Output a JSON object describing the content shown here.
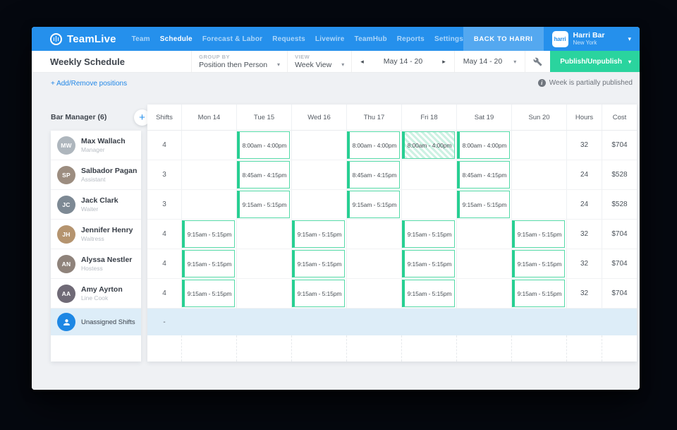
{
  "colors": {
    "nav_blue": "#2590ec",
    "publish_green": "#2ad49e",
    "chip_border": "#55d9a7",
    "chip_edge": "#27cf92",
    "unassigned_bg": "#ddedf8",
    "link_blue": "#2287e6"
  },
  "icons": {
    "chevron_down": "▾",
    "prev_arrow": "◂",
    "next_arrow": "▸",
    "plus": "+",
    "info": "i"
  },
  "nav": {
    "brand": "TeamLive",
    "items": [
      {
        "label": "Team",
        "active": false
      },
      {
        "label": "Schedule",
        "active": true
      },
      {
        "label": "Forecast & Labor",
        "active": false
      },
      {
        "label": "Requests",
        "active": false
      },
      {
        "label": "Livewire",
        "active": false
      },
      {
        "label": "TeamHub",
        "active": false
      },
      {
        "label": "Reports",
        "active": false
      },
      {
        "label": "Settings",
        "active": false
      }
    ],
    "back_label": "BACK TO HARRI",
    "account": {
      "logo_text": "harri",
      "name": "Harri Bar",
      "location": "New York"
    }
  },
  "toolbar": {
    "title": "Weekly Schedule",
    "group_by": {
      "label": "GROUP BY",
      "value": "Position then Person"
    },
    "view": {
      "label": "VIEW",
      "value": "Week View"
    },
    "week_nav": {
      "value": "May 14 - 20"
    },
    "week_select": {
      "value": "May 14 - 20"
    },
    "publish_label": "Publish/Unpublish"
  },
  "subheader": {
    "add_remove_label": "+ Add/Remove positions",
    "status": "Week is partially published"
  },
  "sidebar": {
    "group_label": "Bar Manager (6)",
    "employees": [
      {
        "name": "Max Wallach",
        "role": "Manager",
        "initials": "MW",
        "avatar_color": "#aeb6bd"
      },
      {
        "name": "Salbador Pagan",
        "role": "Assistant",
        "initials": "SP",
        "avatar_color": "#9c8d80"
      },
      {
        "name": "Jack Clark",
        "role": "Waiter",
        "initials": "JC",
        "avatar_color": "#7d8994"
      },
      {
        "name": "Jennifer Henry",
        "role": "Waitress",
        "initials": "JH",
        "avatar_color": "#b5946f"
      },
      {
        "name": "Alyssa Nestler",
        "role": "Hostess",
        "initials": "AN",
        "avatar_color": "#8f837b"
      },
      {
        "name": "Amy Ayrton",
        "role": "Line Cook",
        "initials": "AA",
        "avatar_color": "#6f6a76"
      }
    ],
    "unassigned_label": "Unassigned Shifts"
  },
  "grid": {
    "columns": [
      "Shifts",
      "Mon 14",
      "Tue 15",
      "Wed 16",
      "Thu 17",
      "Fri 18",
      "Sat 19",
      "Sun 20",
      "Hours",
      "Cost"
    ],
    "rows": [
      {
        "shifts": "4",
        "days": [
          null,
          {
            "time": "8:00am - 4:00pm"
          },
          null,
          {
            "time": "8:00am - 4:00pm"
          },
          {
            "time": "8:00am - 4:00pm",
            "hatched": true
          },
          {
            "time": "8:00am - 4:00pm"
          },
          null
        ],
        "hours": "32",
        "cost": "$704"
      },
      {
        "shifts": "3",
        "days": [
          null,
          {
            "time": "8:45am - 4:15pm"
          },
          null,
          {
            "time": "8:45am - 4:15pm"
          },
          null,
          {
            "time": "8:45am - 4:15pm"
          },
          null
        ],
        "hours": "24",
        "cost": "$528"
      },
      {
        "shifts": "3",
        "days": [
          null,
          {
            "time": "9:15am - 5:15pm"
          },
          null,
          {
            "time": "9:15am - 5:15pm"
          },
          null,
          {
            "time": "9:15am - 5:15pm"
          },
          null
        ],
        "hours": "24",
        "cost": "$528"
      },
      {
        "shifts": "4",
        "days": [
          {
            "time": "9:15am - 5:15pm"
          },
          null,
          {
            "time": "9:15am - 5:15pm"
          },
          null,
          {
            "time": "9:15am - 5:15pm"
          },
          null,
          {
            "time": "9:15am - 5:15pm"
          }
        ],
        "hours": "32",
        "cost": "$704"
      },
      {
        "shifts": "4",
        "days": [
          {
            "time": "9:15am - 5:15pm"
          },
          null,
          {
            "time": "9:15am - 5:15pm"
          },
          null,
          {
            "time": "9:15am - 5:15pm"
          },
          null,
          {
            "time": "9:15am - 5:15pm"
          }
        ],
        "hours": "32",
        "cost": "$704"
      },
      {
        "shifts": "4",
        "days": [
          {
            "time": "9:15am - 5:15pm"
          },
          null,
          {
            "time": "9:15am - 5:15pm"
          },
          null,
          {
            "time": "9:15am - 5:15pm"
          },
          null,
          {
            "time": "9:15am - 5:15pm"
          }
        ],
        "hours": "32",
        "cost": "$704"
      }
    ],
    "unassigned": {
      "shifts": "-"
    }
  }
}
